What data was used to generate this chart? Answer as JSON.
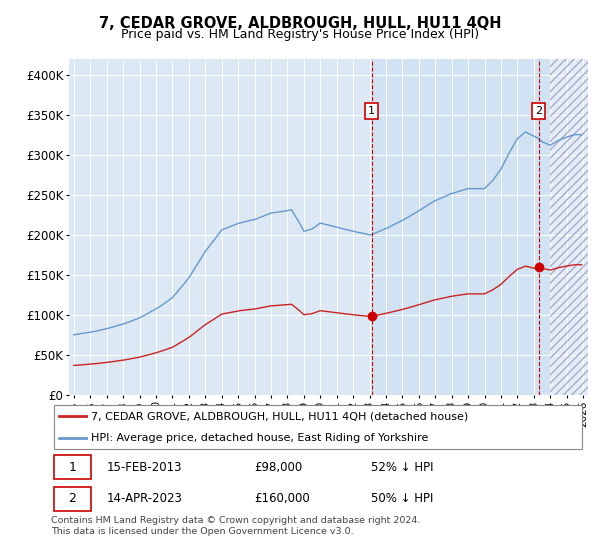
{
  "title": "7, CEDAR GROVE, ALDBROUGH, HULL, HU11 4QH",
  "subtitle": "Price paid vs. HM Land Registry's House Price Index (HPI)",
  "hpi_label": "HPI: Average price, detached house, East Riding of Yorkshire",
  "property_label": "7, CEDAR GROVE, ALDBROUGH, HULL, HU11 4QH (detached house)",
  "footer": "Contains HM Land Registry data © Crown copyright and database right 2024.\nThis data is licensed under the Open Government Licence v3.0.",
  "annotation1": {
    "num": "1",
    "date": "15-FEB-2013",
    "price": "£98,000",
    "pct": "52% ↓ HPI"
  },
  "annotation2": {
    "num": "2",
    "date": "14-APR-2023",
    "price": "£160,000",
    "pct": "50% ↓ HPI"
  },
  "hpi_color": "#6699cc",
  "property_color": "#cc2222",
  "bg_color": "#dce9f5",
  "annotation_color": "#cc0000",
  "ylim": [
    0,
    420000
  ],
  "yticks": [
    0,
    50000,
    100000,
    150000,
    200000,
    250000,
    300000,
    350000,
    400000
  ],
  "ytick_labels": [
    "£0",
    "£50K",
    "£100K",
    "£150K",
    "£200K",
    "£250K",
    "£300K",
    "£350K",
    "£400K"
  ],
  "sale1_year": 2013.12,
  "sale1_price": 98000,
  "sale2_year": 2023.29,
  "sale2_price": 160000,
  "xmin": 1995.0,
  "xmax": 2026.0
}
